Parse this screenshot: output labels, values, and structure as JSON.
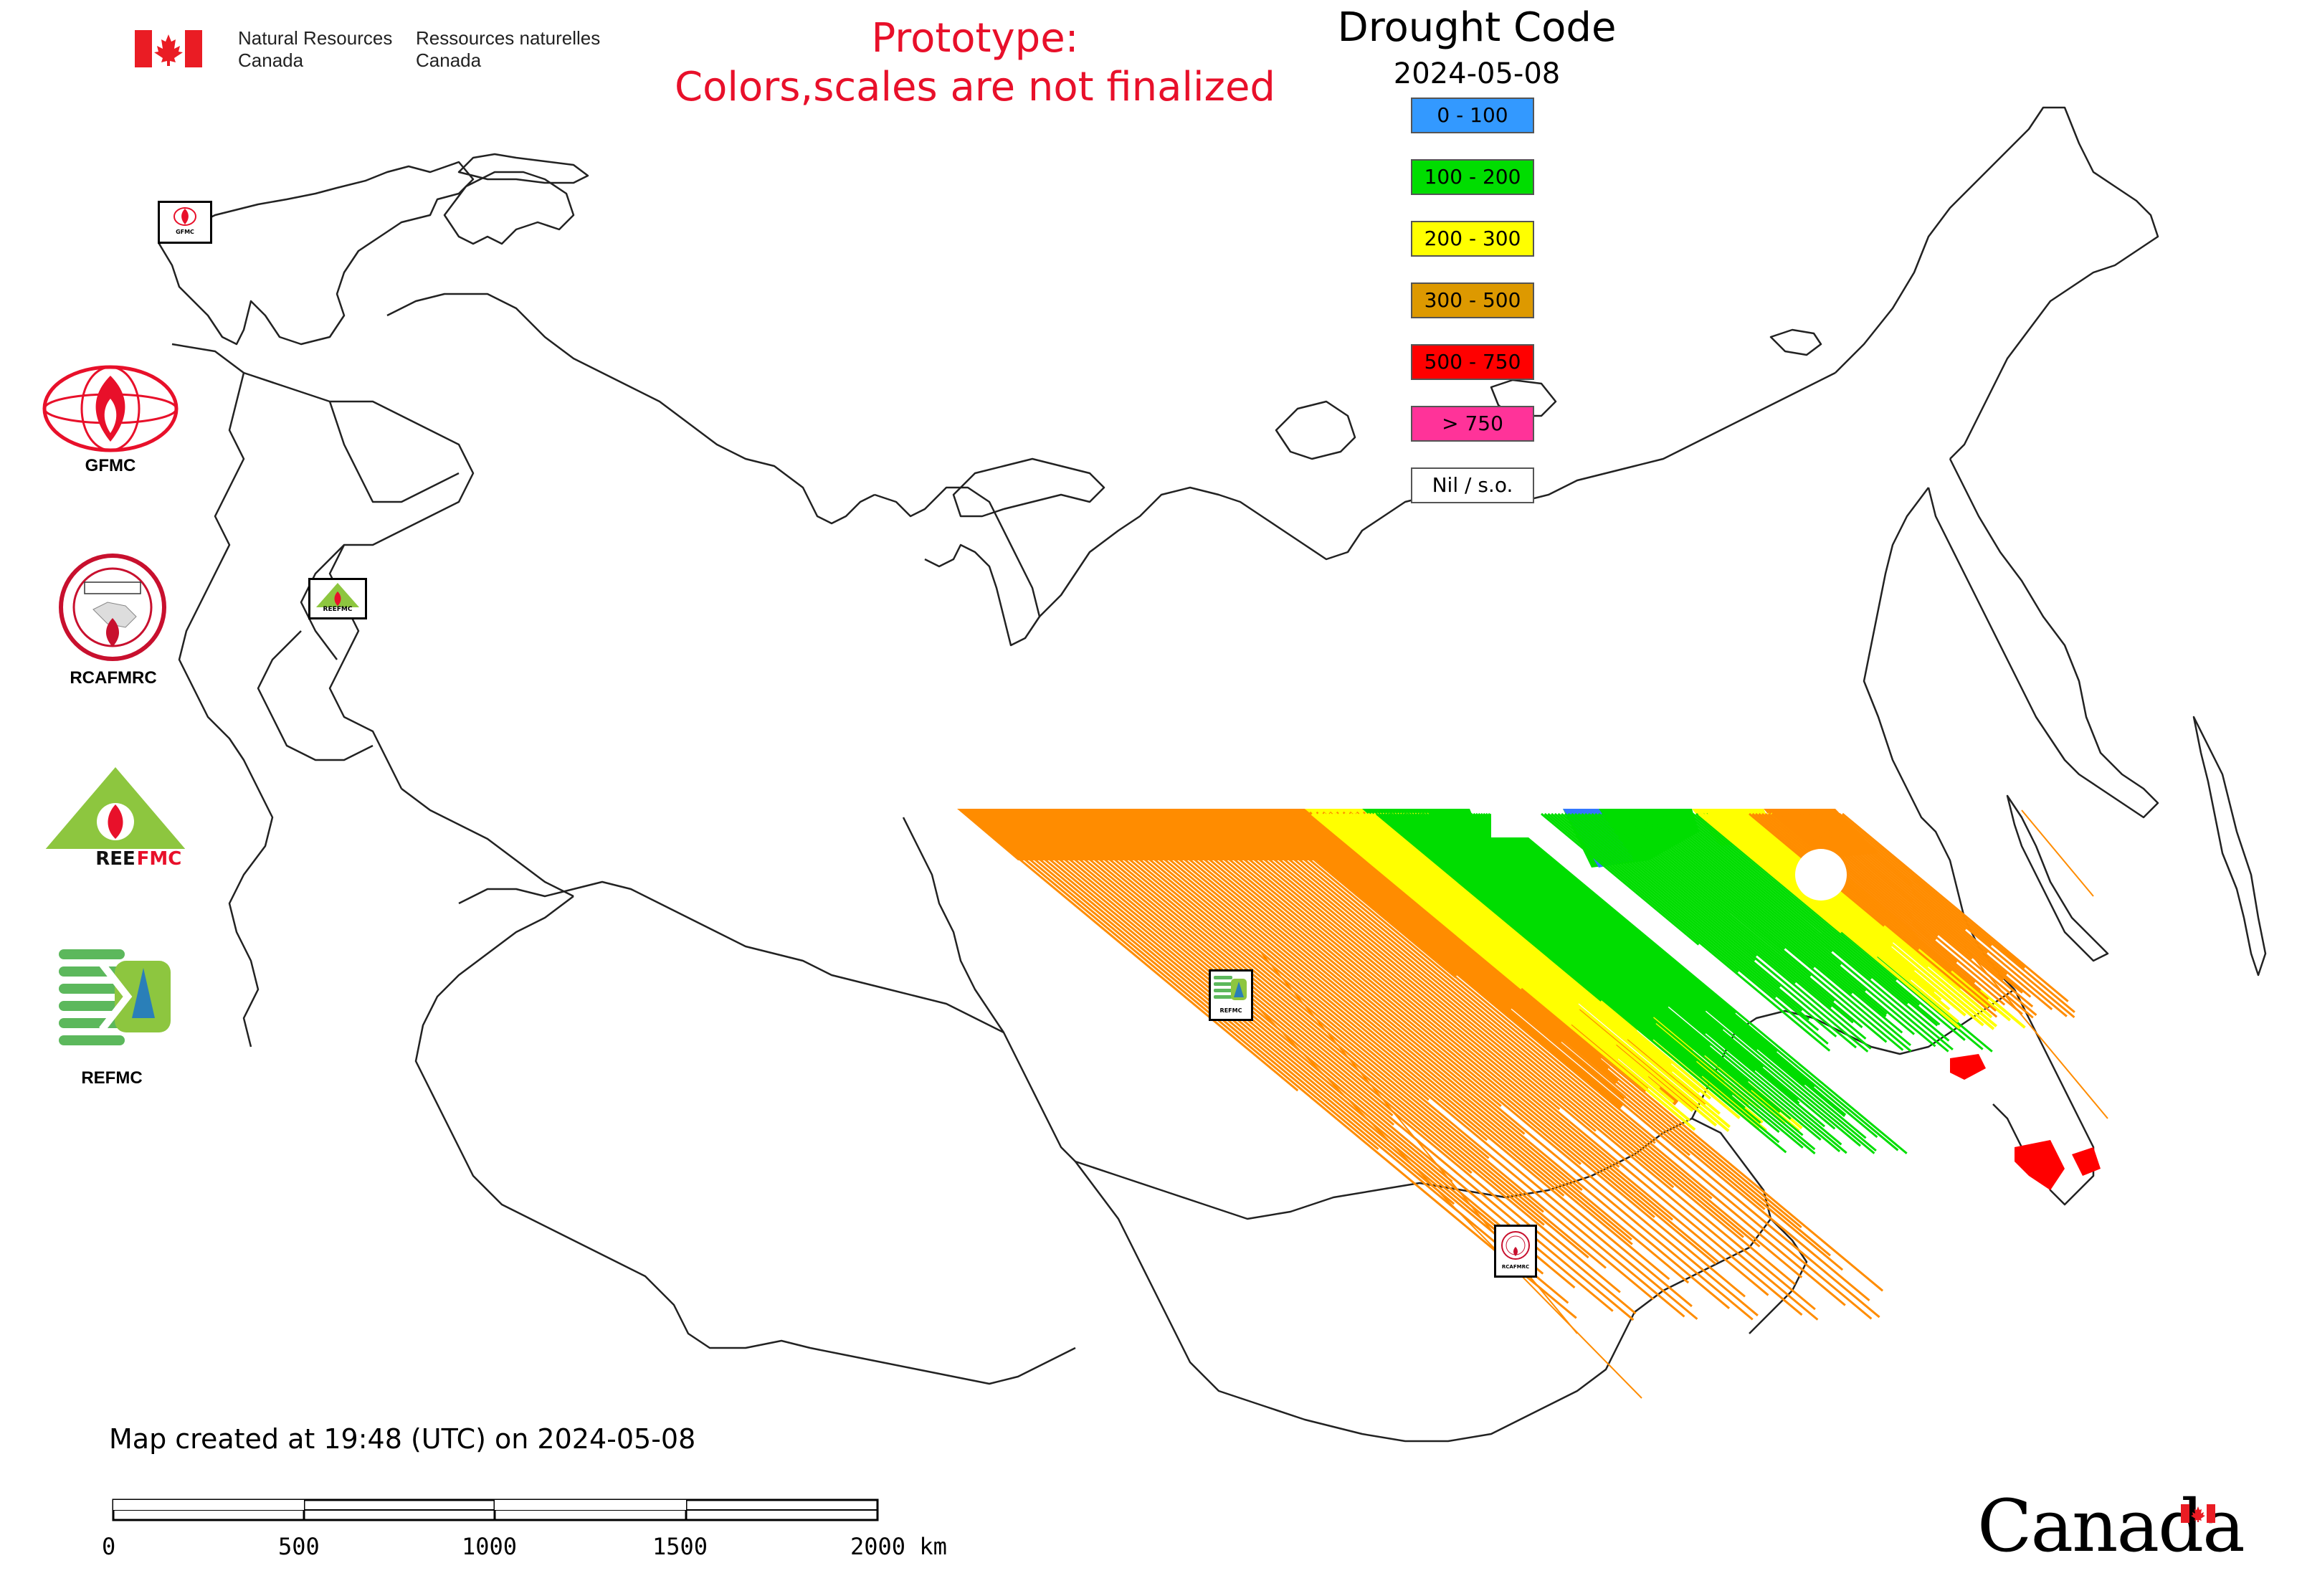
{
  "header": {
    "department_en_line1": "Natural Resources",
    "department_en_line2": "Canada",
    "department_fr_line1": "Ressources naturelles",
    "department_fr_line2": "Canada",
    "prototype_line1": "Prototype:",
    "prototype_line2": "Colors,scales are not finalized"
  },
  "legend": {
    "title": "Drought Code",
    "date": "2024-05-08",
    "items": [
      {
        "label": "0 - 100",
        "color": "#3399ff"
      },
      {
        "label": "100 - 200",
        "color": "#00dd00"
      },
      {
        "label": "200 - 300",
        "color": "#ffff00"
      },
      {
        "label": "300 - 500",
        "color": "#dd9900"
      },
      {
        "label": "500 - 750",
        "color": "#ff0000"
      },
      {
        "label": "> 750",
        "color": "#ff3399"
      },
      {
        "label": "Nil / s.o.",
        "color": "#ffffff"
      }
    ]
  },
  "side_logos": [
    {
      "label": "GFMC"
    },
    {
      "label": "RCAFMRC"
    },
    {
      "label": "REEFMC"
    },
    {
      "label": "REFMC"
    }
  ],
  "map_markers": {
    "gfmc_small": "GFMC",
    "reefmc_small": "REEFMC",
    "refmc_small": "REFMC",
    "rcafmrc_small": "RCAFMRC"
  },
  "footer": {
    "created_note": "Map created at 19:48 (UTC) on 2024-05-08",
    "scale_ticks": [
      "0",
      "500",
      "1000",
      "1500",
      "2000 km"
    ],
    "wordmark": "Canada"
  },
  "colors": {
    "prototype_text": "#e8102a",
    "canada_red": "#ea1c24",
    "map_outline": "#222222",
    "dc_orange": "#ff8c00",
    "dc_yellow": "#ffff00",
    "dc_green": "#00dd00",
    "dc_blue": "#3377ff",
    "dc_red": "#ff0000"
  }
}
